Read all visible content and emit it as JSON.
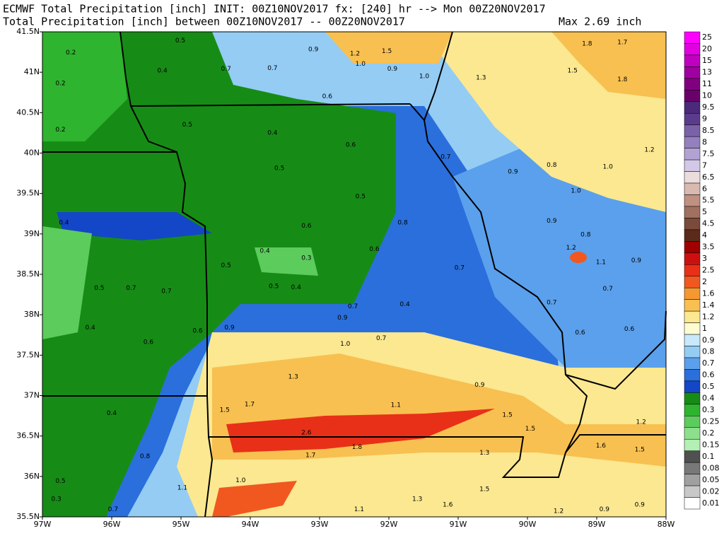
{
  "header": {
    "line1": "ECMWF Total Precipitation [inch] INIT: 00Z10NOV2017 fx: [240] hr --> Mon 00Z20NOV2017",
    "line2": "Total Precipitation [inch] between 00Z10NOV2017 -- 00Z20NOV2017",
    "max": "Max 2.69 inch"
  },
  "map": {
    "lat_ticks": [
      {
        "value": 41.5,
        "label": "41.5N"
      },
      {
        "value": 41,
        "label": "41N"
      },
      {
        "value": 40.5,
        "label": "40.5N"
      },
      {
        "value": 40,
        "label": "40N"
      },
      {
        "value": 39.5,
        "label": "39.5N"
      },
      {
        "value": 39,
        "label": "39N"
      },
      {
        "value": 38.5,
        "label": "38.5N"
      },
      {
        "value": 38,
        "label": "38N"
      },
      {
        "value": 37.5,
        "label": "37.5N"
      },
      {
        "value": 37,
        "label": "37N"
      },
      {
        "value": 36.5,
        "label": "36.5N"
      },
      {
        "value": 36,
        "label": "36N"
      },
      {
        "value": 35.5,
        "label": "35.5N"
      }
    ],
    "lon_ticks": [
      {
        "value": -97,
        "label": "97W"
      },
      {
        "value": -96,
        "label": "96W"
      },
      {
        "value": -95,
        "label": "95W"
      },
      {
        "value": -94,
        "label": "94W"
      },
      {
        "value": -93,
        "label": "93W"
      },
      {
        "value": -92,
        "label": "92W"
      },
      {
        "value": -91,
        "label": "91W"
      },
      {
        "value": -90,
        "label": "90W"
      },
      {
        "value": -89,
        "label": "89W"
      },
      {
        "value": -88,
        "label": "88W"
      }
    ],
    "labels": [
      {
        "text": "0.2",
        "lon": -96.59,
        "lat": 41.24
      },
      {
        "text": "0.2",
        "lon": -96.74,
        "lat": 40.86
      },
      {
        "text": "0.2",
        "lon": -96.74,
        "lat": 40.29
      },
      {
        "text": "0.5",
        "lon": -95.01,
        "lat": 41.39
      },
      {
        "text": "0.4",
        "lon": -95.27,
        "lat": 41.02
      },
      {
        "text": "0.7",
        "lon": -94.35,
        "lat": 41.04
      },
      {
        "text": "0.7",
        "lon": -93.68,
        "lat": 41.05
      },
      {
        "text": "0.6",
        "lon": -92.89,
        "lat": 40.7
      },
      {
        "text": "1.0",
        "lon": -92.41,
        "lat": 41.1
      },
      {
        "text": "0.9",
        "lon": -91.95,
        "lat": 41.04
      },
      {
        "text": "1.0",
        "lon": -91.49,
        "lat": 40.95
      },
      {
        "text": "1.3",
        "lon": -90.67,
        "lat": 40.93
      },
      {
        "text": "1.5",
        "lon": -89.35,
        "lat": 41.02
      },
      {
        "text": "1.8",
        "lon": -88.63,
        "lat": 40.91
      },
      {
        "text": "1.8",
        "lon": -89.14,
        "lat": 41.35
      },
      {
        "text": "1.7",
        "lon": -88.63,
        "lat": 41.37
      },
      {
        "text": "1.2",
        "lon": -92.49,
        "lat": 41.23
      },
      {
        "text": "0.9",
        "lon": -93.09,
        "lat": 41.28
      },
      {
        "text": "1.5",
        "lon": -92.03,
        "lat": 41.26
      },
      {
        "text": "0.5",
        "lon": -94.91,
        "lat": 40.35
      },
      {
        "text": "0.4",
        "lon": -93.68,
        "lat": 40.25
      },
      {
        "text": "0.6",
        "lon": -92.55,
        "lat": 40.1
      },
      {
        "text": "0.5",
        "lon": -93.58,
        "lat": 39.81
      },
      {
        "text": "0.5",
        "lon": -92.41,
        "lat": 39.46
      },
      {
        "text": "0.7",
        "lon": -91.18,
        "lat": 39.95
      },
      {
        "text": "0.9",
        "lon": -90.21,
        "lat": 39.77
      },
      {
        "text": "0.8",
        "lon": -89.65,
        "lat": 39.85
      },
      {
        "text": "1.0",
        "lon": -88.84,
        "lat": 39.83
      },
      {
        "text": "1.2",
        "lon": -88.24,
        "lat": 40.04
      },
      {
        "text": "1.0",
        "lon": -89.3,
        "lat": 39.53
      },
      {
        "text": "0.9",
        "lon": -89.65,
        "lat": 39.16
      },
      {
        "text": "0.8",
        "lon": -89.16,
        "lat": 38.99
      },
      {
        "text": "1.2",
        "lon": -89.37,
        "lat": 38.83
      },
      {
        "text": "1.1",
        "lon": -88.94,
        "lat": 38.65
      },
      {
        "text": "0.9",
        "lon": -88.43,
        "lat": 38.67
      },
      {
        "text": "0.7",
        "lon": -88.84,
        "lat": 38.32
      },
      {
        "text": "0.7",
        "lon": -89.65,
        "lat": 38.15
      },
      {
        "text": "0.6",
        "lon": -89.24,
        "lat": 37.78
      },
      {
        "text": "0.6",
        "lon": -88.53,
        "lat": 37.82
      },
      {
        "text": "0.6",
        "lon": -93.19,
        "lat": 39.1
      },
      {
        "text": "0.8",
        "lon": -91.8,
        "lat": 39.14
      },
      {
        "text": "0.6",
        "lon": -92.21,
        "lat": 38.81
      },
      {
        "text": "0.7",
        "lon": -90.98,
        "lat": 38.58
      },
      {
        "text": "0.3",
        "lon": -93.19,
        "lat": 38.7
      },
      {
        "text": "0.4",
        "lon": -93.79,
        "lat": 38.79
      },
      {
        "text": "0.5",
        "lon": -94.35,
        "lat": 38.61
      },
      {
        "text": "0.4",
        "lon": -93.34,
        "lat": 38.34
      },
      {
        "text": "0.5",
        "lon": -93.66,
        "lat": 38.35
      },
      {
        "text": "0.4",
        "lon": -91.77,
        "lat": 38.13
      },
      {
        "text": "0.7",
        "lon": -92.52,
        "lat": 38.1
      },
      {
        "text": "0.9",
        "lon": -92.67,
        "lat": 37.96
      },
      {
        "text": "0.7",
        "lon": -92.11,
        "lat": 37.71
      },
      {
        "text": "1.0",
        "lon": -92.63,
        "lat": 37.64
      },
      {
        "text": "0.9",
        "lon": -94.3,
        "lat": 37.84
      },
      {
        "text": "0.6",
        "lon": -94.76,
        "lat": 37.8
      },
      {
        "text": "0.6",
        "lon": -95.47,
        "lat": 37.66
      },
      {
        "text": "0.7",
        "lon": -95.72,
        "lat": 38.33
      },
      {
        "text": "0.7",
        "lon": -95.21,
        "lat": 38.29
      },
      {
        "text": "0.5",
        "lon": -96.18,
        "lat": 38.33
      },
      {
        "text": "0.4",
        "lon": -96.31,
        "lat": 37.84
      },
      {
        "text": "0.4",
        "lon": -96.0,
        "lat": 36.78
      },
      {
        "text": "1.3",
        "lon": -93.38,
        "lat": 37.23
      },
      {
        "text": "1.7",
        "lon": -94.01,
        "lat": 36.89
      },
      {
        "text": "1.5",
        "lon": -94.37,
        "lat": 36.82
      },
      {
        "text": "2.6",
        "lon": -93.19,
        "lat": 36.54
      },
      {
        "text": "1.8",
        "lon": -92.46,
        "lat": 36.36
      },
      {
        "text": "1.7",
        "lon": -93.13,
        "lat": 36.26
      },
      {
        "text": "1.1",
        "lon": -91.9,
        "lat": 36.88
      },
      {
        "text": "1.5",
        "lon": -90.29,
        "lat": 36.76
      },
      {
        "text": "1.5",
        "lon": -89.96,
        "lat": 36.59
      },
      {
        "text": "1.2",
        "lon": -88.36,
        "lat": 36.67
      },
      {
        "text": "1.6",
        "lon": -88.94,
        "lat": 36.38
      },
      {
        "text": "1.5",
        "lon": -88.38,
        "lat": 36.33
      },
      {
        "text": "1.3",
        "lon": -90.62,
        "lat": 36.29
      },
      {
        "text": "1.5",
        "lon": -90.62,
        "lat": 35.84
      },
      {
        "text": "1.6",
        "lon": -91.15,
        "lat": 35.65
      },
      {
        "text": "1.3",
        "lon": -91.59,
        "lat": 35.72
      },
      {
        "text": "1.1",
        "lon": -92.43,
        "lat": 35.59
      },
      {
        "text": "1.0",
        "lon": -94.14,
        "lat": 35.95
      },
      {
        "text": "1.1",
        "lon": -94.98,
        "lat": 35.86
      },
      {
        "text": "0.8",
        "lon": -95.52,
        "lat": 36.25
      },
      {
        "text": "0.7",
        "lon": -95.98,
        "lat": 35.59
      },
      {
        "text": "0.5",
        "lon": -96.74,
        "lat": 35.94
      },
      {
        "text": "0.3",
        "lon": -96.8,
        "lat": 35.72
      },
      {
        "text": "0.9",
        "lon": -88.89,
        "lat": 35.59
      },
      {
        "text": "0.9",
        "lon": -88.38,
        "lat": 35.65
      },
      {
        "text": "1.2",
        "lon": -89.55,
        "lat": 35.57
      },
      {
        "text": "0.9",
        "lon": -90.69,
        "lat": 37.13
      },
      {
        "text": "0.4",
        "lon": -96.69,
        "lat": 39.14
      }
    ]
  },
  "legend": {
    "entries": [
      {
        "label": "25",
        "color": "#ff00ff"
      },
      {
        "label": "20",
        "color": "#e000e0"
      },
      {
        "label": "15",
        "color": "#c000c0"
      },
      {
        "label": "13",
        "color": "#a000a0"
      },
      {
        "label": "11",
        "color": "#800080"
      },
      {
        "label": "10",
        "color": "#6a006a"
      },
      {
        "label": "9.5",
        "color": "#4b2a7a"
      },
      {
        "label": "9",
        "color": "#5b3c8c"
      },
      {
        "label": "8.5",
        "color": "#7a62a8"
      },
      {
        "label": "8",
        "color": "#9480be"
      },
      {
        "label": "7.5",
        "color": "#b2a2d4"
      },
      {
        "label": "7",
        "color": "#d4c8e8"
      },
      {
        "label": "6.5",
        "color": "#ecdcdc"
      },
      {
        "label": "6",
        "color": "#d9b9b0"
      },
      {
        "label": "5.5",
        "color": "#c09080"
      },
      {
        "label": "5",
        "color": "#a07060"
      },
      {
        "label": "4.5",
        "color": "#7a4a3a"
      },
      {
        "label": "4",
        "color": "#5a2a1a"
      },
      {
        "label": "3.5",
        "color": "#a00000"
      },
      {
        "label": "3",
        "color": "#cc1010"
      },
      {
        "label": "2.5",
        "color": "#e83018"
      },
      {
        "label": "2",
        "color": "#f05820"
      },
      {
        "label": "1.6",
        "color": "#f59830"
      },
      {
        "label": "1.4",
        "color": "#f8c050"
      },
      {
        "label": "1.2",
        "color": "#fbe890"
      },
      {
        "label": "1",
        "color": "#fdfcd0"
      },
      {
        "label": "0.9",
        "color": "#c8e8fc"
      },
      {
        "label": "0.8",
        "color": "#94ccf4"
      },
      {
        "label": "0.7",
        "color": "#5aa0ec"
      },
      {
        "label": "0.6",
        "color": "#2a6fdc"
      },
      {
        "label": "0.5",
        "color": "#1446c8"
      },
      {
        "label": "0.4",
        "color": "#168c16"
      },
      {
        "label": "0.3",
        "color": "#2eb42e"
      },
      {
        "label": "0.25",
        "color": "#5ccc5c"
      },
      {
        "label": "0.2",
        "color": "#8ce08c"
      },
      {
        "label": "0.15",
        "color": "#b4f0b4"
      },
      {
        "label": "0.1",
        "color": "#505050"
      },
      {
        "label": "0.08",
        "color": "#787878"
      },
      {
        "label": "0.05",
        "color": "#a0a0a0"
      },
      {
        "label": "0.02",
        "color": "#c8c8c8"
      },
      {
        "label": "0.01",
        "color": "#ffffff"
      }
    ]
  }
}
